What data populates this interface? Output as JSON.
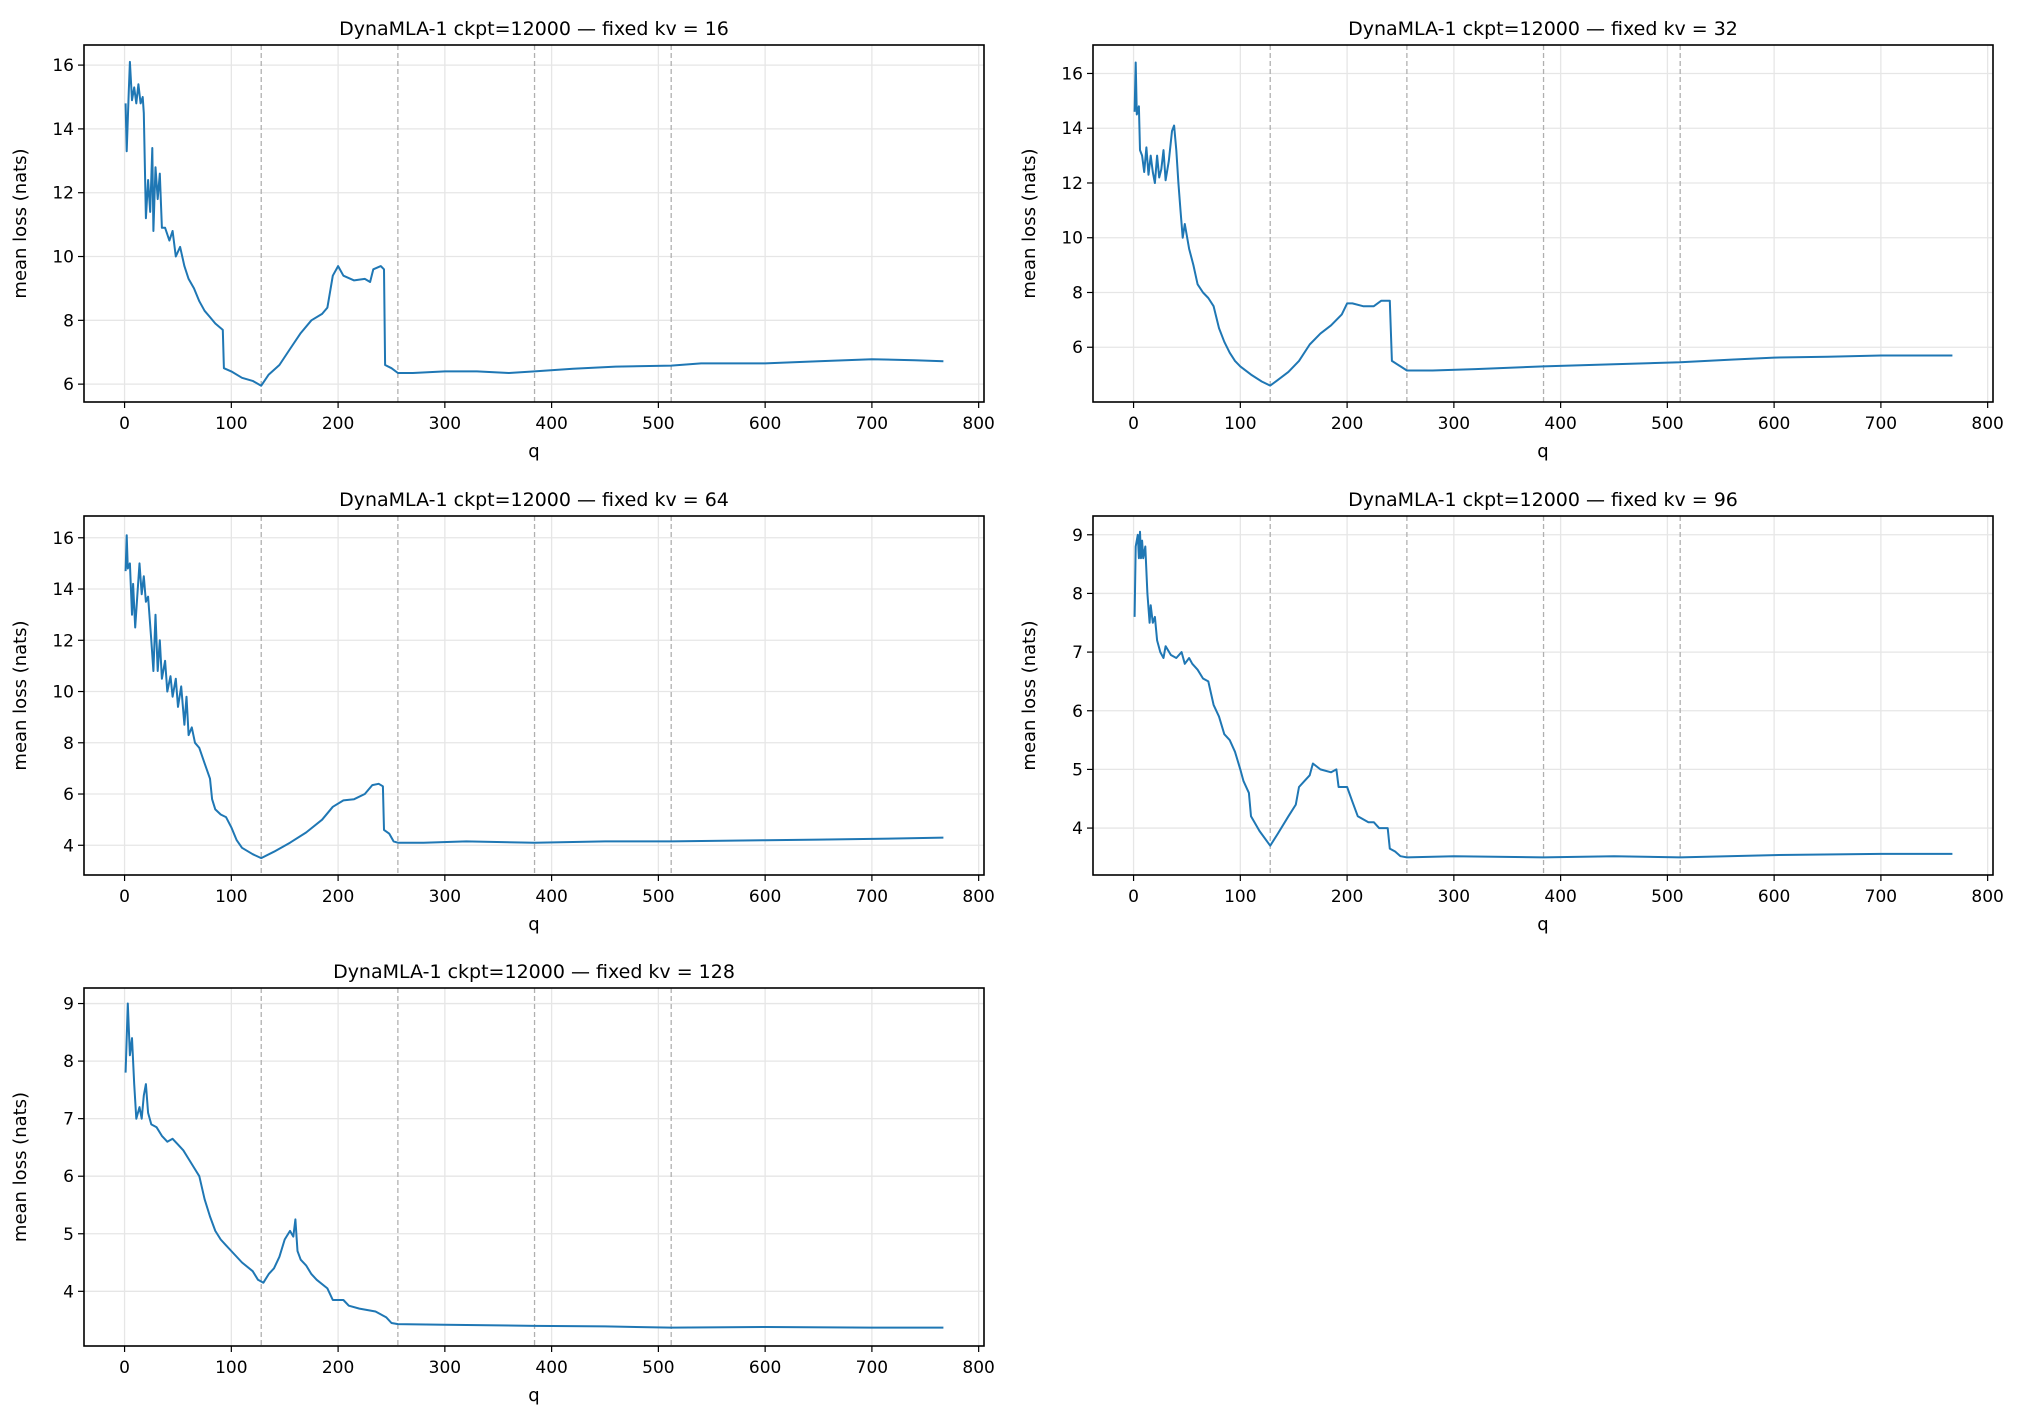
{
  "chart_data": [
    {
      "type": "line",
      "title": "DynaMLA-1 ckpt=12000 — fixed kv = 16",
      "xlabel": "q",
      "ylabel": "mean loss (nats)",
      "xlim": [
        -38,
        805
      ],
      "ylim": [
        5.44,
        16.63
      ],
      "xticks": [
        0,
        100,
        200,
        300,
        400,
        500,
        600,
        700,
        800
      ],
      "yticks": [
        6,
        8,
        10,
        12,
        14,
        16
      ],
      "grid": true,
      "vlines": [
        128,
        256,
        384,
        512
      ],
      "color": "#1f77b4",
      "points": [
        [
          1,
          14.8
        ],
        [
          2,
          13.3
        ],
        [
          4,
          15.2
        ],
        [
          5,
          16.1
        ],
        [
          7,
          14.9
        ],
        [
          9,
          15.3
        ],
        [
          11,
          14.8
        ],
        [
          13,
          15.4
        ],
        [
          15,
          14.8
        ],
        [
          17,
          15.0
        ],
        [
          18,
          14.5
        ],
        [
          20,
          11.2
        ],
        [
          22,
          12.4
        ],
        [
          24,
          11.4
        ],
        [
          26,
          13.4
        ],
        [
          27,
          10.8
        ],
        [
          29,
          12.8
        ],
        [
          31,
          11.8
        ],
        [
          33,
          12.6
        ],
        [
          35,
          10.9
        ],
        [
          38,
          10.9
        ],
        [
          42,
          10.5
        ],
        [
          45,
          10.8
        ],
        [
          48,
          10.0
        ],
        [
          52,
          10.3
        ],
        [
          56,
          9.7
        ],
        [
          60,
          9.3
        ],
        [
          65,
          9.0
        ],
        [
          70,
          8.6
        ],
        [
          75,
          8.3
        ],
        [
          80,
          8.1
        ],
        [
          85,
          7.9
        ],
        [
          92,
          7.7
        ],
        [
          93,
          6.5
        ],
        [
          100,
          6.4
        ],
        [
          110,
          6.2
        ],
        [
          120,
          6.1
        ],
        [
          128,
          5.95
        ],
        [
          135,
          6.3
        ],
        [
          145,
          6.6
        ],
        [
          155,
          7.1
        ],
        [
          165,
          7.6
        ],
        [
          175,
          8.0
        ],
        [
          185,
          8.2
        ],
        [
          190,
          8.4
        ],
        [
          195,
          9.4
        ],
        [
          200,
          9.7
        ],
        [
          205,
          9.4
        ],
        [
          215,
          9.25
        ],
        [
          225,
          9.3
        ],
        [
          230,
          9.2
        ],
        [
          233,
          9.6
        ],
        [
          240,
          9.7
        ],
        [
          243,
          9.6
        ],
        [
          244,
          6.6
        ],
        [
          250,
          6.5
        ],
        [
          256,
          6.35
        ],
        [
          270,
          6.35
        ],
        [
          300,
          6.4
        ],
        [
          330,
          6.4
        ],
        [
          360,
          6.35
        ],
        [
          384,
          6.4
        ],
        [
          420,
          6.48
        ],
        [
          460,
          6.55
        ],
        [
          512,
          6.58
        ],
        [
          540,
          6.65
        ],
        [
          600,
          6.65
        ],
        [
          650,
          6.72
        ],
        [
          700,
          6.78
        ],
        [
          740,
          6.75
        ],
        [
          767,
          6.72
        ]
      ]
    },
    {
      "type": "line",
      "title": "DynaMLA-1 ckpt=12000 — fixed kv = 32",
      "xlabel": "q",
      "ylabel": "mean loss (nats)",
      "xlim": [
        -38,
        805
      ],
      "ylim": [
        4.0,
        17.04
      ],
      "xticks": [
        0,
        100,
        200,
        300,
        400,
        500,
        600,
        700,
        800
      ],
      "yticks": [
        6,
        8,
        10,
        12,
        14,
        16
      ],
      "grid": true,
      "vlines": [
        128,
        256,
        384,
        512
      ],
      "color": "#1f77b4",
      "points": [
        [
          1,
          14.6
        ],
        [
          2,
          16.4
        ],
        [
          3,
          14.5
        ],
        [
          5,
          14.8
        ],
        [
          6,
          13.2
        ],
        [
          8,
          13.0
        ],
        [
          10,
          12.4
        ],
        [
          12,
          13.3
        ],
        [
          14,
          12.3
        ],
        [
          16,
          13.0
        ],
        [
          18,
          12.4
        ],
        [
          20,
          12.0
        ],
        [
          22,
          13.0
        ],
        [
          24,
          12.2
        ],
        [
          26,
          12.5
        ],
        [
          28,
          13.2
        ],
        [
          30,
          12.1
        ],
        [
          33,
          12.8
        ],
        [
          36,
          13.9
        ],
        [
          38,
          14.1
        ],
        [
          40,
          13.2
        ],
        [
          42,
          12.0
        ],
        [
          44,
          11.0
        ],
        [
          46,
          10.0
        ],
        [
          48,
          10.5
        ],
        [
          52,
          9.6
        ],
        [
          56,
          9.0
        ],
        [
          60,
          8.3
        ],
        [
          65,
          8.0
        ],
        [
          70,
          7.8
        ],
        [
          75,
          7.5
        ],
        [
          80,
          6.7
        ],
        [
          85,
          6.2
        ],
        [
          90,
          5.8
        ],
        [
          95,
          5.5
        ],
        [
          100,
          5.3
        ],
        [
          110,
          5.0
        ],
        [
          120,
          4.75
        ],
        [
          128,
          4.6
        ],
        [
          135,
          4.8
        ],
        [
          145,
          5.1
        ],
        [
          155,
          5.5
        ],
        [
          165,
          6.1
        ],
        [
          175,
          6.5
        ],
        [
          185,
          6.8
        ],
        [
          195,
          7.2
        ],
        [
          200,
          7.6
        ],
        [
          205,
          7.6
        ],
        [
          215,
          7.5
        ],
        [
          225,
          7.5
        ],
        [
          232,
          7.7
        ],
        [
          240,
          7.7
        ],
        [
          242,
          5.5
        ],
        [
          250,
          5.3
        ],
        [
          256,
          5.15
        ],
        [
          280,
          5.15
        ],
        [
          320,
          5.2
        ],
        [
          384,
          5.3
        ],
        [
          450,
          5.38
        ],
        [
          512,
          5.45
        ],
        [
          560,
          5.55
        ],
        [
          600,
          5.62
        ],
        [
          650,
          5.65
        ],
        [
          700,
          5.7
        ],
        [
          767,
          5.7
        ]
      ]
    },
    {
      "type": "line",
      "title": "DynaMLA-1 ckpt=12000 — fixed kv = 64",
      "xlabel": "q",
      "ylabel": "mean loss (nats)",
      "xlim": [
        -38,
        805
      ],
      "ylim": [
        2.84,
        16.85
      ],
      "xticks": [
        0,
        100,
        200,
        300,
        400,
        500,
        600,
        700,
        800
      ],
      "yticks": [
        4,
        6,
        8,
        10,
        12,
        14,
        16
      ],
      "grid": true,
      "vlines": [
        128,
        256,
        384,
        512
      ],
      "color": "#1f77b4",
      "points": [
        [
          1,
          14.7
        ],
        [
          2,
          16.1
        ],
        [
          3,
          14.8
        ],
        [
          5,
          15.0
        ],
        [
          7,
          13.0
        ],
        [
          8,
          14.2
        ],
        [
          10,
          12.5
        ],
        [
          12,
          13.8
        ],
        [
          14,
          15.0
        ],
        [
          16,
          13.8
        ],
        [
          18,
          14.5
        ],
        [
          20,
          13.5
        ],
        [
          22,
          13.7
        ],
        [
          25,
          12.0
        ],
        [
          27,
          10.8
        ],
        [
          29,
          13.0
        ],
        [
          31,
          10.8
        ],
        [
          33,
          12.0
        ],
        [
          35,
          10.5
        ],
        [
          38,
          11.2
        ],
        [
          40,
          10.0
        ],
        [
          43,
          10.6
        ],
        [
          45,
          9.8
        ],
        [
          48,
          10.5
        ],
        [
          50,
          9.4
        ],
        [
          53,
          10.2
        ],
        [
          56,
          8.7
        ],
        [
          58,
          9.8
        ],
        [
          60,
          8.3
        ],
        [
          63,
          8.6
        ],
        [
          66,
          8.0
        ],
        [
          70,
          7.8
        ],
        [
          75,
          7.2
        ],
        [
          80,
          6.6
        ],
        [
          82,
          5.8
        ],
        [
          85,
          5.4
        ],
        [
          90,
          5.2
        ],
        [
          95,
          5.1
        ],
        [
          100,
          4.7
        ],
        [
          105,
          4.2
        ],
        [
          110,
          3.9
        ],
        [
          120,
          3.65
        ],
        [
          128,
          3.5
        ],
        [
          140,
          3.75
        ],
        [
          155,
          4.1
        ],
        [
          170,
          4.5
        ],
        [
          185,
          5.0
        ],
        [
          195,
          5.5
        ],
        [
          205,
          5.75
        ],
        [
          215,
          5.8
        ],
        [
          225,
          6.0
        ],
        [
          232,
          6.35
        ],
        [
          238,
          6.4
        ],
        [
          242,
          6.3
        ],
        [
          243,
          4.6
        ],
        [
          248,
          4.45
        ],
        [
          252,
          4.15
        ],
        [
          256,
          4.1
        ],
        [
          280,
          4.1
        ],
        [
          320,
          4.15
        ],
        [
          384,
          4.1
        ],
        [
          450,
          4.15
        ],
        [
          512,
          4.15
        ],
        [
          600,
          4.2
        ],
        [
          650,
          4.22
        ],
        [
          700,
          4.25
        ],
        [
          767,
          4.3
        ]
      ]
    },
    {
      "type": "line",
      "title": "DynaMLA-1 ckpt=12000 — fixed kv = 96",
      "xlabel": "q",
      "ylabel": "mean loss (nats)",
      "xlim": [
        -38,
        805
      ],
      "ylim": [
        3.2,
        9.32
      ],
      "xticks": [
        0,
        100,
        200,
        300,
        400,
        500,
        600,
        700,
        800
      ],
      "yticks": [
        4,
        5,
        6,
        7,
        8,
        9
      ],
      "grid": true,
      "vlines": [
        128,
        256,
        384,
        512
      ],
      "color": "#1f77b4",
      "points": [
        [
          1,
          7.6
        ],
        [
          2,
          8.8
        ],
        [
          4,
          9.0
        ],
        [
          5,
          8.6
        ],
        [
          6,
          9.05
        ],
        [
          7,
          8.6
        ],
        [
          8,
          8.9
        ],
        [
          9,
          8.6
        ],
        [
          11,
          8.8
        ],
        [
          13,
          8.0
        ],
        [
          15,
          7.5
        ],
        [
          16,
          7.8
        ],
        [
          18,
          7.5
        ],
        [
          20,
          7.6
        ],
        [
          22,
          7.2
        ],
        [
          25,
          7.0
        ],
        [
          28,
          6.9
        ],
        [
          30,
          7.1
        ],
        [
          35,
          6.95
        ],
        [
          40,
          6.9
        ],
        [
          45,
          7.0
        ],
        [
          48,
          6.8
        ],
        [
          52,
          6.9
        ],
        [
          55,
          6.8
        ],
        [
          60,
          6.7
        ],
        [
          65,
          6.55
        ],
        [
          70,
          6.5
        ],
        [
          75,
          6.1
        ],
        [
          80,
          5.9
        ],
        [
          85,
          5.6
        ],
        [
          90,
          5.5
        ],
        [
          95,
          5.3
        ],
        [
          100,
          5.0
        ],
        [
          103,
          4.8
        ],
        [
          108,
          4.6
        ],
        [
          110,
          4.2
        ],
        [
          118,
          3.95
        ],
        [
          128,
          3.7
        ],
        [
          135,
          3.9
        ],
        [
          145,
          4.2
        ],
        [
          152,
          4.4
        ],
        [
          155,
          4.7
        ],
        [
          160,
          4.8
        ],
        [
          165,
          4.9
        ],
        [
          168,
          5.1
        ],
        [
          175,
          5.0
        ],
        [
          185,
          4.95
        ],
        [
          190,
          5.0
        ],
        [
          192,
          4.7
        ],
        [
          200,
          4.7
        ],
        [
          205,
          4.45
        ],
        [
          210,
          4.2
        ],
        [
          220,
          4.1
        ],
        [
          225,
          4.1
        ],
        [
          230,
          4.0
        ],
        [
          238,
          4.0
        ],
        [
          240,
          3.65
        ],
        [
          245,
          3.6
        ],
        [
          250,
          3.52
        ],
        [
          256,
          3.5
        ],
        [
          300,
          3.52
        ],
        [
          384,
          3.5
        ],
        [
          450,
          3.52
        ],
        [
          512,
          3.5
        ],
        [
          600,
          3.54
        ],
        [
          700,
          3.56
        ],
        [
          767,
          3.56
        ]
      ]
    },
    {
      "type": "line",
      "title": "DynaMLA-1 ckpt=12000 — fixed kv = 128",
      "xlabel": "q",
      "ylabel": "mean loss (nats)",
      "xlim": [
        -38,
        805
      ],
      "ylim": [
        3.05,
        9.27
      ],
      "xticks": [
        0,
        100,
        200,
        300,
        400,
        500,
        600,
        700,
        800
      ],
      "yticks": [
        4,
        5,
        6,
        7,
        8,
        9
      ],
      "grid": true,
      "vlines": [
        128,
        256,
        384,
        512
      ],
      "color": "#1f77b4",
      "points": [
        [
          1,
          7.8
        ],
        [
          3,
          9.0
        ],
        [
          5,
          8.1
        ],
        [
          7,
          8.4
        ],
        [
          9,
          7.6
        ],
        [
          11,
          7.0
        ],
        [
          14,
          7.2
        ],
        [
          16,
          7.0
        ],
        [
          18,
          7.4
        ],
        [
          20,
          7.6
        ],
        [
          22,
          7.1
        ],
        [
          25,
          6.9
        ],
        [
          30,
          6.85
        ],
        [
          35,
          6.7
        ],
        [
          40,
          6.6
        ],
        [
          45,
          6.65
        ],
        [
          50,
          6.55
        ],
        [
          55,
          6.45
        ],
        [
          60,
          6.3
        ],
        [
          65,
          6.15
        ],
        [
          70,
          6.0
        ],
        [
          75,
          5.6
        ],
        [
          80,
          5.3
        ],
        [
          85,
          5.05
        ],
        [
          90,
          4.9
        ],
        [
          95,
          4.8
        ],
        [
          100,
          4.7
        ],
        [
          110,
          4.5
        ],
        [
          120,
          4.35
        ],
        [
          125,
          4.2
        ],
        [
          130,
          4.15
        ],
        [
          135,
          4.3
        ],
        [
          140,
          4.4
        ],
        [
          145,
          4.6
        ],
        [
          150,
          4.9
        ],
        [
          155,
          5.05
        ],
        [
          158,
          4.95
        ],
        [
          160,
          5.25
        ],
        [
          162,
          4.7
        ],
        [
          165,
          4.55
        ],
        [
          170,
          4.45
        ],
        [
          175,
          4.3
        ],
        [
          180,
          4.2
        ],
        [
          190,
          4.05
        ],
        [
          195,
          3.85
        ],
        [
          205,
          3.85
        ],
        [
          210,
          3.75
        ],
        [
          220,
          3.7
        ],
        [
          235,
          3.65
        ],
        [
          245,
          3.55
        ],
        [
          250,
          3.45
        ],
        [
          256,
          3.43
        ],
        [
          300,
          3.42
        ],
        [
          384,
          3.4
        ],
        [
          450,
          3.39
        ],
        [
          512,
          3.37
        ],
        [
          600,
          3.38
        ],
        [
          700,
          3.37
        ],
        [
          767,
          3.37
        ]
      ]
    }
  ]
}
